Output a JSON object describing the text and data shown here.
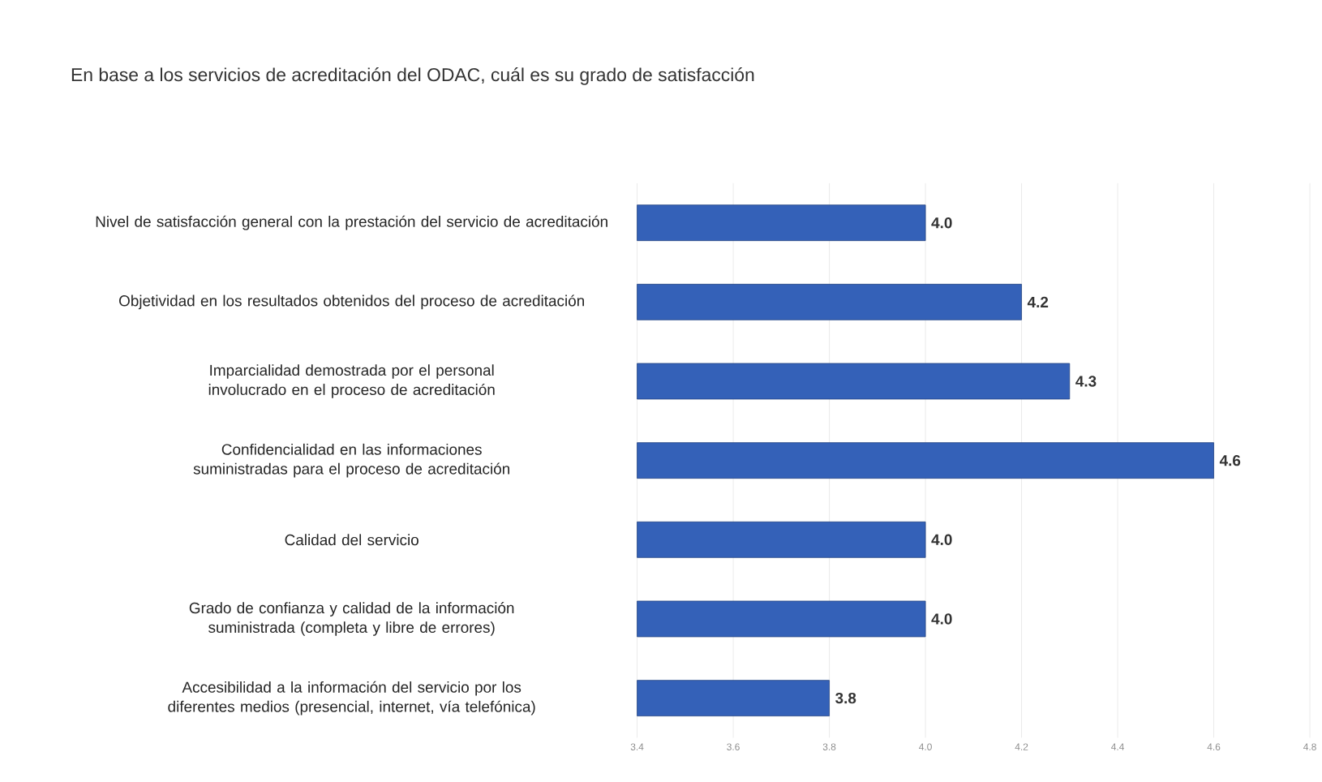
{
  "chart_data": {
    "type": "bar",
    "orientation": "horizontal",
    "title": "En base a los servicios de acreditación del ODAC, cuál es su grado de satisfacción",
    "categories": [
      "Nivel de satisfacción general con la prestación del servicio de acreditación",
      "Objetividad en los resultados obtenidos del proceso de acreditación",
      "Imparcialidad demostrada por el personal involucrado en el proceso de acreditación",
      "Confidencialidad en las informaciones suministradas para el proceso de acreditación",
      "Calidad del servicio",
      "Grado de confianza y calidad de la información suministrada (completa y libre de errores)",
      "Accesibilidad a la información del servicio por los diferentes medios (presencial, internet, vía telefónica)"
    ],
    "values": [
      4.0,
      4.2,
      4.3,
      4.6,
      4.0,
      4.0,
      3.8
    ],
    "value_labels": [
      "4.0",
      "4.2",
      "4.3",
      "4.6",
      "4.0",
      "4.0",
      "3.8"
    ],
    "color": "#3461b8",
    "xlim": [
      3.4,
      4.8
    ],
    "xticks": [
      {
        "value": 3.4,
        "label": "3.4"
      },
      {
        "value": 3.6,
        "label": "3.6"
      },
      {
        "value": 3.8,
        "label": "3.8"
      },
      {
        "value": 4.0,
        "label": "4.0"
      },
      {
        "value": 4.2,
        "label": "4.2"
      },
      {
        "value": 4.4,
        "label": "4.4"
      },
      {
        "value": 4.6,
        "label": "4.6"
      },
      {
        "value": 4.8,
        "label": "4.8"
      }
    ],
    "grid": "x"
  }
}
